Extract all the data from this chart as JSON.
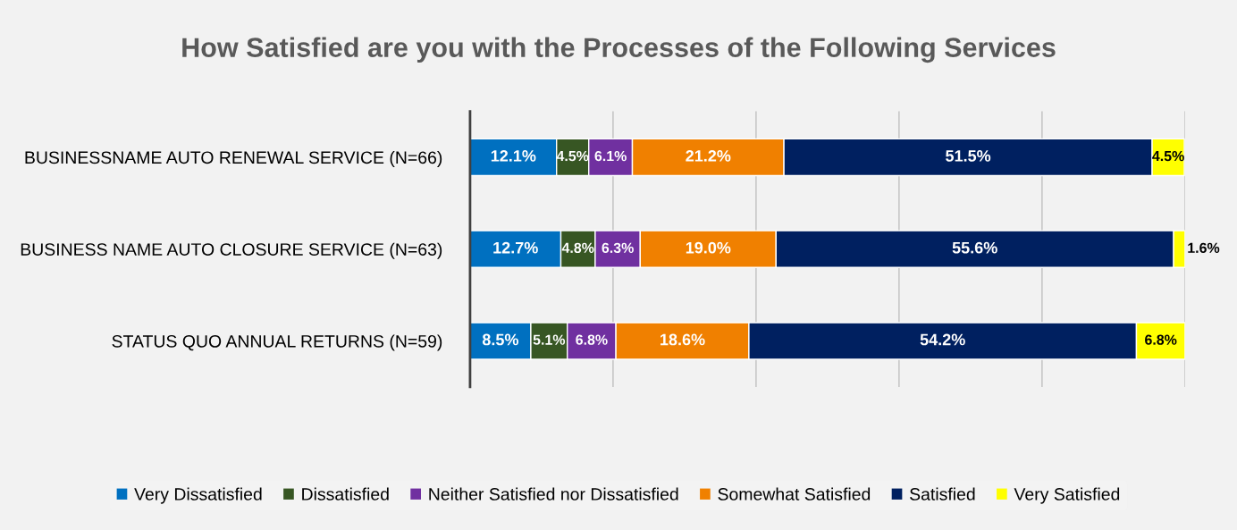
{
  "chart_data": {
    "type": "bar",
    "orientation": "horizontal",
    "stacked": true,
    "title": "How Satisfied are you with the Processes of the Following Services",
    "categories": [
      "BUSINESSNAME AUTO RENEWAL SERVICE (N=66)",
      "BUSINESS NAME AUTO CLOSURE SERVICE (N=63)",
      "STATUS QUO ANNUAL RETURNS (N=59)"
    ],
    "series": [
      {
        "name": "Very Dissatisfied",
        "color": "#0070c0",
        "values": [
          12.1,
          12.7,
          8.5
        ],
        "value_labels": [
          "12.1%",
          "12.7%",
          "8.5%"
        ]
      },
      {
        "name": "Dissatisfied",
        "color": "#375623",
        "values": [
          4.5,
          4.8,
          5.1
        ],
        "value_labels": [
          "4.5%",
          "4.8%",
          "5.1%"
        ]
      },
      {
        "name": "Neither Satisfied nor Dissatisfied",
        "color": "#7030a0",
        "values": [
          6.1,
          6.3,
          6.8
        ],
        "value_labels": [
          "6.1%",
          "6.3%",
          "6.8%"
        ]
      },
      {
        "name": "Somewhat Satisfied",
        "color": "#f08000",
        "values": [
          21.2,
          19.0,
          18.6
        ],
        "value_labels": [
          "21.2%",
          "19.0%",
          "18.6%"
        ]
      },
      {
        "name": "Satisfied",
        "color": "#002060",
        "values": [
          51.5,
          55.6,
          54.2
        ],
        "value_labels": [
          "51.5%",
          "55.6%",
          "54.2%"
        ]
      },
      {
        "name": "Very Satisfied",
        "color": "#ffff00",
        "values": [
          4.5,
          1.6,
          6.8
        ],
        "value_labels": [
          "4.5%",
          "1.6%",
          "6.8%"
        ]
      }
    ],
    "tick_labels": "y",
    "grid": "x",
    "legend": "bottom"
  }
}
